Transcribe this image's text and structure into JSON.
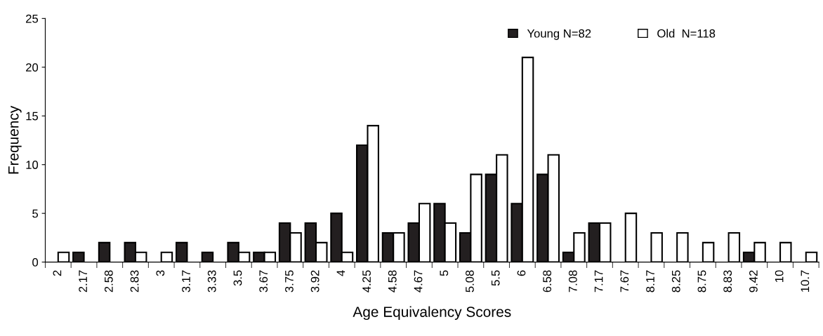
{
  "chart_data": {
    "type": "bar",
    "xlabel": "Age Equivalency Scores",
    "ylabel": "Frequency",
    "categories": [
      "2",
      "2.17",
      "2.58",
      "2.83",
      "3",
      "3.17",
      "3.33",
      "3.5",
      "3.67",
      "3.75",
      "3.92",
      "4",
      "4.25",
      "4.58",
      "4.67",
      "5",
      "5.08",
      "5.5",
      "6",
      "6.58",
      "7.08",
      "7.17",
      "7.67",
      "8.17",
      "8.25",
      "8.75",
      "8.83",
      "9.42",
      "10",
      "10.7"
    ],
    "series": [
      {
        "name": "Young N=82",
        "color": "#231f20",
        "values": [
          0,
          1,
          2,
          2,
          0,
          2,
          1,
          2,
          1,
          4,
          4,
          5,
          12,
          3,
          4,
          6,
          3,
          9,
          6,
          9,
          1,
          4,
          0,
          0,
          0,
          0,
          0,
          1,
          0,
          0
        ]
      },
      {
        "name": "Old  N=118",
        "color": "#ffffff",
        "values": [
          1,
          0,
          0,
          1,
          1,
          0,
          0,
          1,
          1,
          3,
          2,
          1,
          14,
          3,
          6,
          4,
          9,
          11,
          21,
          11,
          3,
          4,
          5,
          3,
          3,
          2,
          3,
          2,
          2,
          1
        ]
      }
    ],
    "ylim": [
      0,
      25
    ],
    "yticks": [
      0,
      5,
      10,
      15,
      20,
      25
    ],
    "grid": false,
    "legend": "top right"
  }
}
